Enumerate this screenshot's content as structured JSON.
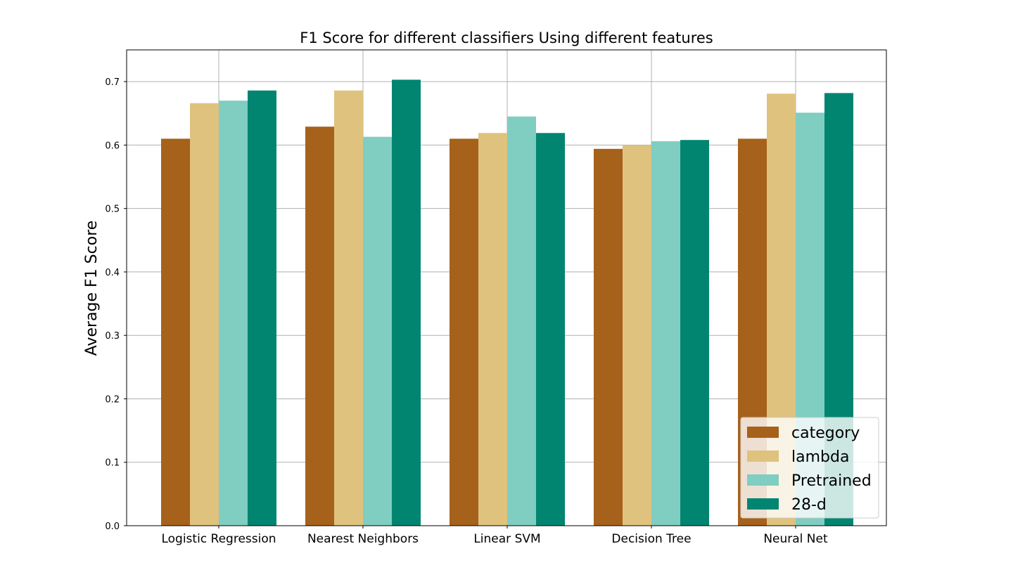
{
  "chart_data": {
    "type": "bar",
    "title": "F1 Score for different classifiers Using different features",
    "xlabel": "",
    "ylabel": "Average F1 Score",
    "ylim": [
      0,
      0.75
    ],
    "yticks": [
      "0.0",
      "0.1",
      "0.2",
      "0.3",
      "0.4",
      "0.5",
      "0.6",
      "0.7"
    ],
    "grid": true,
    "legend_position": "lower-right",
    "categories": [
      "Logistic Regression",
      "Nearest Neighbors",
      "Linear SVM",
      "Decision Tree",
      "Neural Net"
    ],
    "series": [
      {
        "name": "category",
        "color": "#a6611a",
        "values": [
          0.61,
          0.629,
          0.61,
          0.594,
          0.61
        ]
      },
      {
        "name": "lambda",
        "color": "#dfc27d",
        "values": [
          0.666,
          0.686,
          0.619,
          0.6,
          0.681
        ]
      },
      {
        "name": "Pretrained",
        "color": "#80cdc1",
        "values": [
          0.67,
          0.613,
          0.645,
          0.606,
          0.651
        ]
      },
      {
        "name": "28-d",
        "color": "#018571",
        "values": [
          0.686,
          0.703,
          0.619,
          0.608,
          0.682
        ]
      }
    ]
  }
}
